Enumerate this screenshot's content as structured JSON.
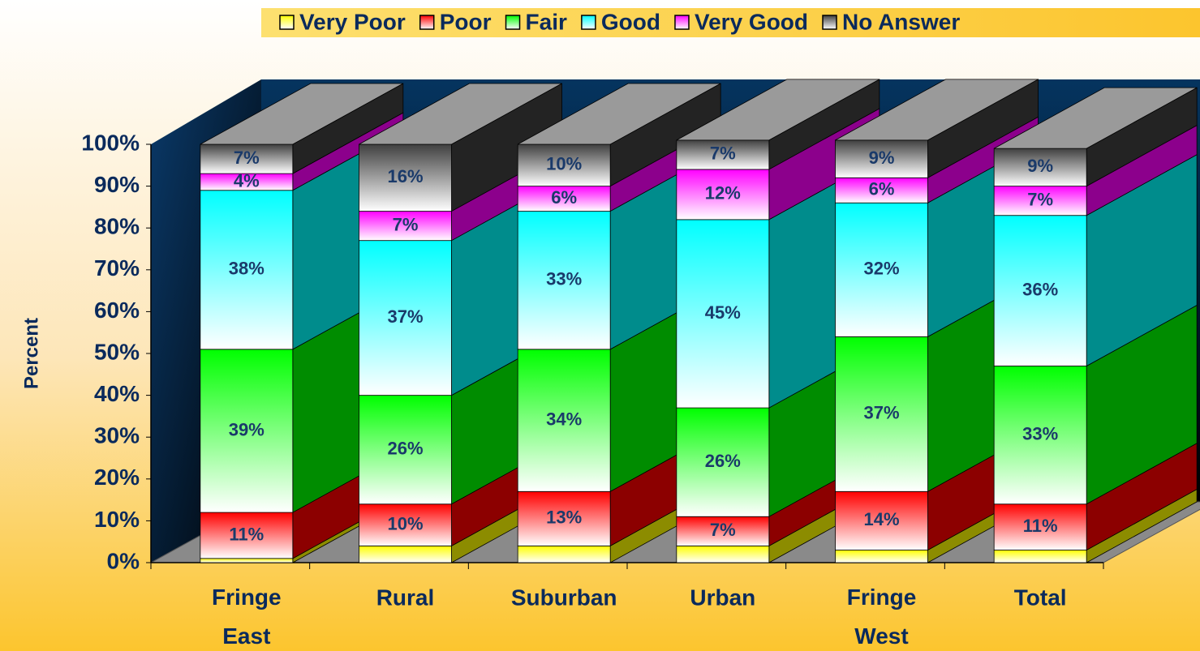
{
  "chart_data": {
    "type": "bar3d_stacked",
    "ylabel": "Percent",
    "categories": [
      "Fringe East",
      "Rural",
      "Suburban",
      "Urban",
      "Fringe West",
      "Total"
    ],
    "series": [
      {
        "name": "Very Poor",
        "color": "#ffff00",
        "values": [
          1,
          4,
          4,
          4,
          3,
          3
        ]
      },
      {
        "name": "Poor",
        "color": "#ff0000",
        "values": [
          11,
          10,
          13,
          7,
          14,
          11
        ],
        "value_labels": [
          "11%",
          "10%",
          "13%",
          "7%",
          "14%",
          "11%"
        ]
      },
      {
        "name": "Fair",
        "color": "#00ff00",
        "values": [
          39,
          26,
          34,
          26,
          37,
          33
        ],
        "value_labels": [
          "39%",
          "26%",
          "34%",
          "26%",
          "37%",
          "33%"
        ]
      },
      {
        "name": "Good",
        "color": "#00ffff",
        "values": [
          38,
          37,
          33,
          45,
          32,
          36
        ],
        "value_labels": [
          "38%",
          "37%",
          "33%",
          "45%",
          "32%",
          "36%"
        ]
      },
      {
        "name": "Very Good",
        "color": "#ff00ff",
        "values": [
          4,
          7,
          6,
          12,
          6,
          7
        ],
        "value_labels": [
          "4%",
          "7%",
          "6%",
          "12%",
          "6%",
          "7%"
        ]
      },
      {
        "name": "No Answer",
        "color": "#404040",
        "values": [
          7,
          16,
          10,
          7,
          9,
          9
        ],
        "value_labels": [
          "7%",
          "16%",
          "10%",
          "7%",
          "9%",
          "9%"
        ]
      }
    ],
    "ylim": [
      0,
      100
    ],
    "yticks": [
      {
        "value": 0,
        "label": "0%"
      },
      {
        "value": 10,
        "label": "10%"
      },
      {
        "value": 20,
        "label": "20%"
      },
      {
        "value": 30,
        "label": "30%"
      },
      {
        "value": 40,
        "label": "40%"
      },
      {
        "value": 50,
        "label": "50%"
      },
      {
        "value": 60,
        "label": "60%"
      },
      {
        "value": 70,
        "label": "70%"
      },
      {
        "value": 80,
        "label": "80%"
      },
      {
        "value": 90,
        "label": "90%"
      },
      {
        "value": 100,
        "label": "100%"
      }
    ],
    "legend": "top"
  }
}
